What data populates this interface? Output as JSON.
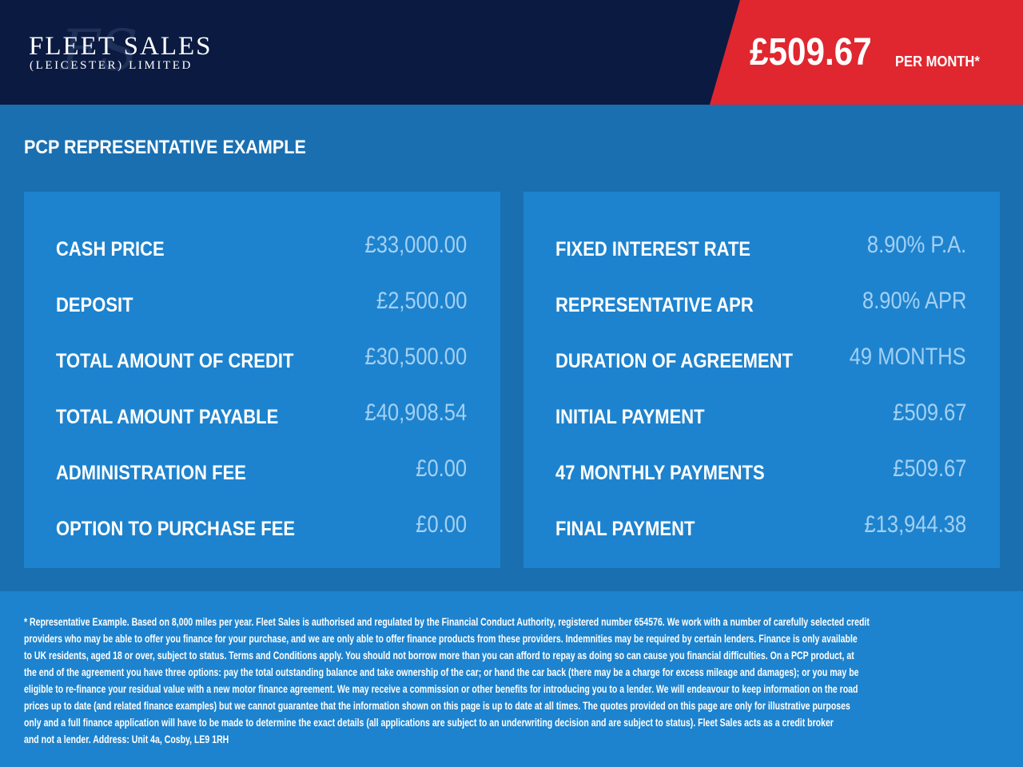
{
  "header": {
    "brand_line1": "FLEET SALES",
    "brand_line2": "(LEICESTER) LIMITED",
    "monthly_price": "£509.67",
    "per_month_label": "PER MONTH*",
    "colors": {
      "navy": "#0b1a40",
      "red": "#e0262f"
    }
  },
  "section_title": "PCP REPRESENTATIVE EXAMPLE",
  "left_panel": [
    {
      "label": "CASH PRICE",
      "value": "£33,000.00"
    },
    {
      "label": "DEPOSIT",
      "value": "£2,500.00"
    },
    {
      "label": "TOTAL AMOUNT OF CREDIT",
      "value": "£30,500.00"
    },
    {
      "label": "TOTAL AMOUNT PAYABLE",
      "value": "£40,908.54"
    },
    {
      "label": "ADMINISTRATION FEE",
      "value": "£0.00"
    },
    {
      "label": "OPTION TO PURCHASE FEE",
      "value": "£0.00"
    }
  ],
  "right_panel": [
    {
      "label": "FIXED INTEREST RATE",
      "value": "8.90% P.A."
    },
    {
      "label": "REPRESENTATIVE APR",
      "value": "8.90% APR"
    },
    {
      "label": "DURATION OF AGREEMENT",
      "value": "49 MONTHS"
    },
    {
      "label": "INITIAL PAYMENT",
      "value": "£509.67"
    },
    {
      "label": "47 MONTHLY PAYMENTS",
      "value": "£509.67"
    },
    {
      "label": "FINAL PAYMENT",
      "value": "£13,944.38"
    }
  ],
  "footer_lines": [
    "* Representative Example. Based on 8,000 miles per year. Fleet Sales is authorised and regulated by the Financial Conduct Authority, registered number 654576. We work with a number of carefully selected credit",
    "providers who may be able to offer you finance for your purchase, and we are only able to offer finance products from these providers. Indemnities may be required by certain lenders. Finance is only available",
    "to UK residents, aged 18 or over, subject to status. Terms and Conditions apply. You should not borrow more than you can afford to repay as doing so can cause you financial difficulties. On a PCP product, at",
    "the end of the agreement you have three options: pay the total outstanding balance and take ownership of the car; or hand the car back (there may be a charge for excess mileage and damages); or you may be",
    "eligible to re-finance your residual value with a new motor finance agreement. We may receive a commission or other benefits for introducing you to a lender. We will endeavour to keep information on the road",
    "prices up to date (and related finance examples) but we cannot guarantee that the information shown on this page is up to date at all times. The quotes provided on this page are only for illustrative purposes",
    "only and a full finance application will have to be made to determine the exact details (all applications are subject to an underwriting decision and are subject to status). Fleet Sales acts as a credit broker",
    "and not a lender. Address: Unit 4a, Cosby, LE9 1RH"
  ]
}
